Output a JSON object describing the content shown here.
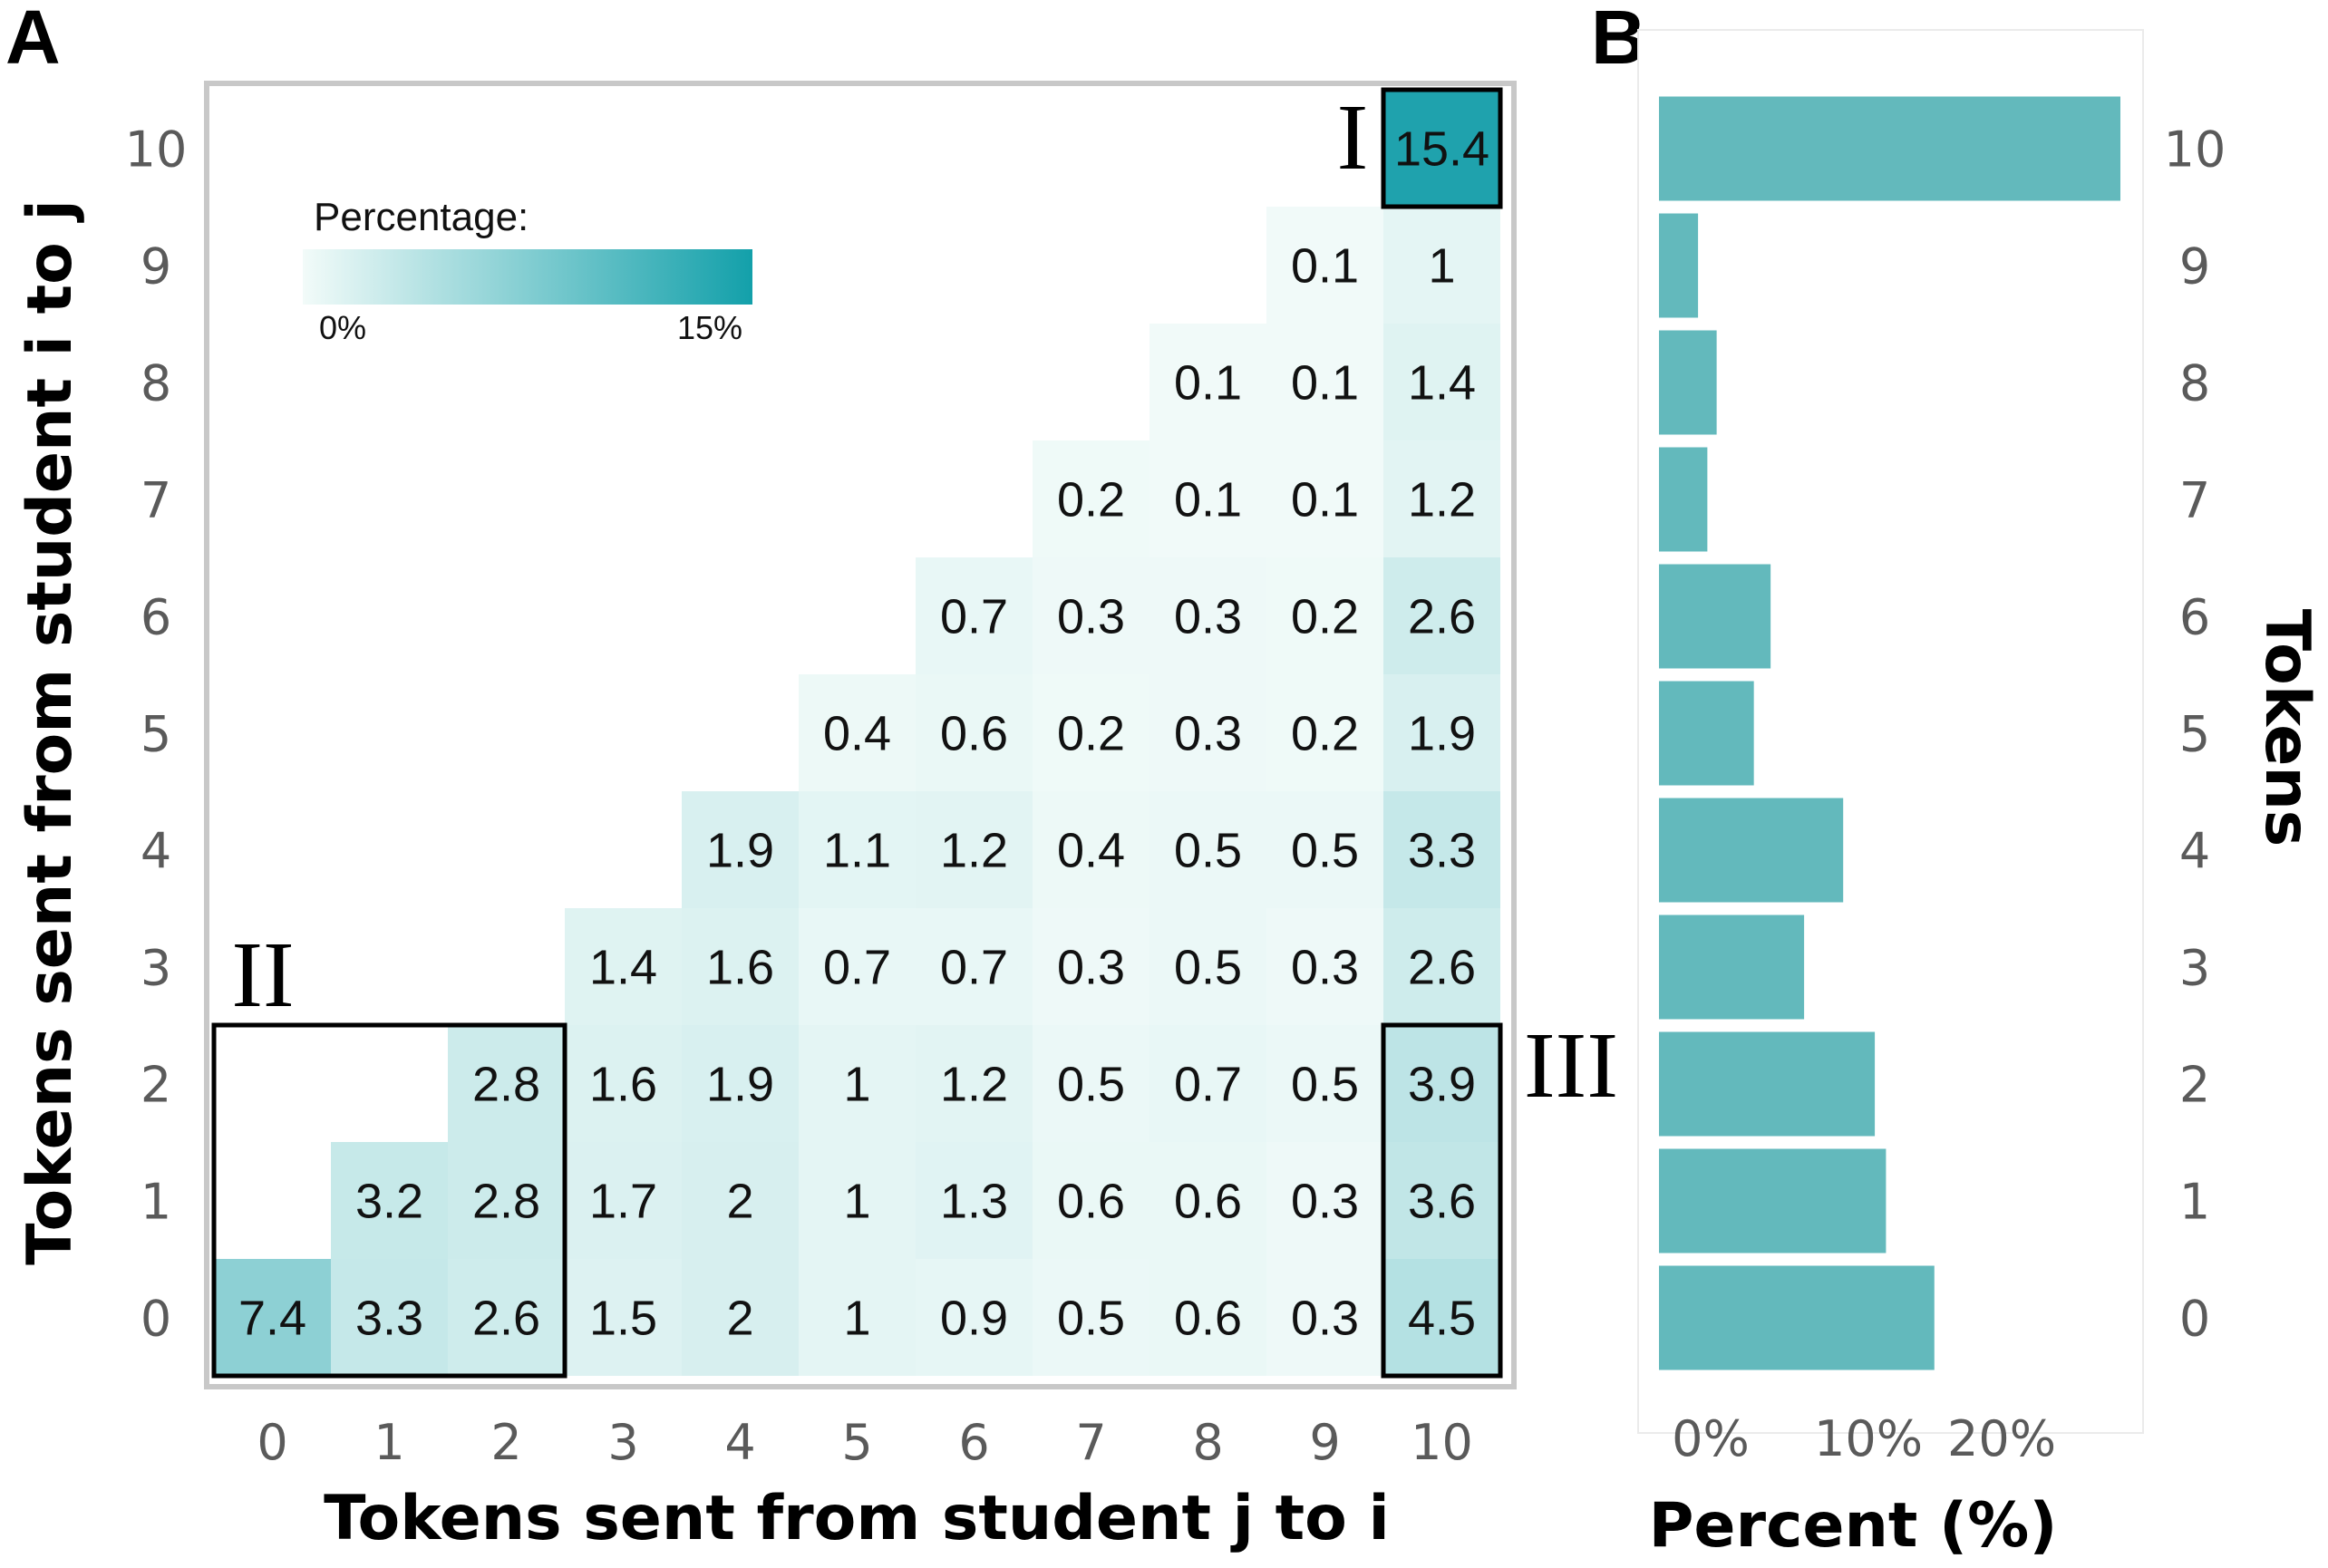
{
  "panels": {
    "a_label": "A",
    "b_label": "B"
  },
  "colors": {
    "low": "#f2fbf9",
    "high": "#1fa2ad",
    "bar": "#63b9bc",
    "highlight_box": "#000000",
    "panel_border": "#c8c8c8"
  },
  "chart_data": [
    {
      "type": "heatmap",
      "xlabel": "Tokens sent from student j to i",
      "ylabel": "Tokens sent from student i to j",
      "x_categories": [
        "0",
        "1",
        "2",
        "3",
        "4",
        "5",
        "6",
        "7",
        "8",
        "9",
        "10"
      ],
      "y_categories": [
        "0",
        "1",
        "2",
        "3",
        "4",
        "5",
        "6",
        "7",
        "8",
        "9",
        "10"
      ],
      "legend": {
        "title": "Percentage:",
        "min_label": "0%",
        "max_label": "15%",
        "range": [
          0,
          15.4
        ],
        "placement": "top-left"
      },
      "values_by_row": {
        "0": [
          7.4,
          3.3,
          2.6,
          1.5,
          2,
          1,
          0.9,
          0.5,
          0.6,
          0.3,
          4.5
        ],
        "1": [
          null,
          3.2,
          2.8,
          1.7,
          2,
          1,
          1.3,
          0.6,
          0.6,
          0.3,
          3.6
        ],
        "2": [
          null,
          null,
          2.8,
          1.6,
          1.9,
          1,
          1.2,
          0.5,
          0.7,
          0.5,
          3.9
        ],
        "3": [
          null,
          null,
          null,
          1.4,
          1.6,
          0.7,
          0.7,
          0.3,
          0.5,
          0.3,
          2.6
        ],
        "4": [
          null,
          null,
          null,
          null,
          1.9,
          1.1,
          1.2,
          0.4,
          0.5,
          0.5,
          3.3
        ],
        "5": [
          null,
          null,
          null,
          null,
          null,
          0.4,
          0.6,
          0.2,
          0.3,
          0.2,
          1.9
        ],
        "6": [
          null,
          null,
          null,
          null,
          null,
          null,
          0.7,
          0.3,
          0.3,
          0.2,
          2.6
        ],
        "7": [
          null,
          null,
          null,
          null,
          null,
          null,
          null,
          0.2,
          0.1,
          0.1,
          1.2
        ],
        "8": [
          null,
          null,
          null,
          null,
          null,
          null,
          null,
          null,
          0.1,
          0.1,
          1.4
        ],
        "9": [
          null,
          null,
          null,
          null,
          null,
          null,
          null,
          null,
          null,
          0.1,
          1
        ],
        "10": [
          null,
          null,
          null,
          null,
          null,
          null,
          null,
          null,
          null,
          null,
          15.4
        ]
      },
      "annotations": [
        {
          "label": "I",
          "region": "x 10, y 10"
        },
        {
          "label": "II",
          "region": "x 0-2, y 0-2"
        },
        {
          "label": "III",
          "region": "x 10, y 0-2"
        }
      ]
    },
    {
      "type": "bar",
      "orientation": "horizontal",
      "xlabel": "Percent (%)",
      "ylabel": "Tokens",
      "categories": [
        "0",
        "1",
        "2",
        "3",
        "4",
        "5",
        "6",
        "7",
        "8",
        "9",
        "10"
      ],
      "values": [
        14.8,
        12.2,
        11.6,
        7.8,
        9.9,
        5.1,
        6.0,
        2.6,
        3.1,
        2.1,
        24.8
      ],
      "x_tick_labels": [
        "0%",
        "10%",
        "20%"
      ],
      "xlim": [
        0,
        25
      ]
    }
  ]
}
